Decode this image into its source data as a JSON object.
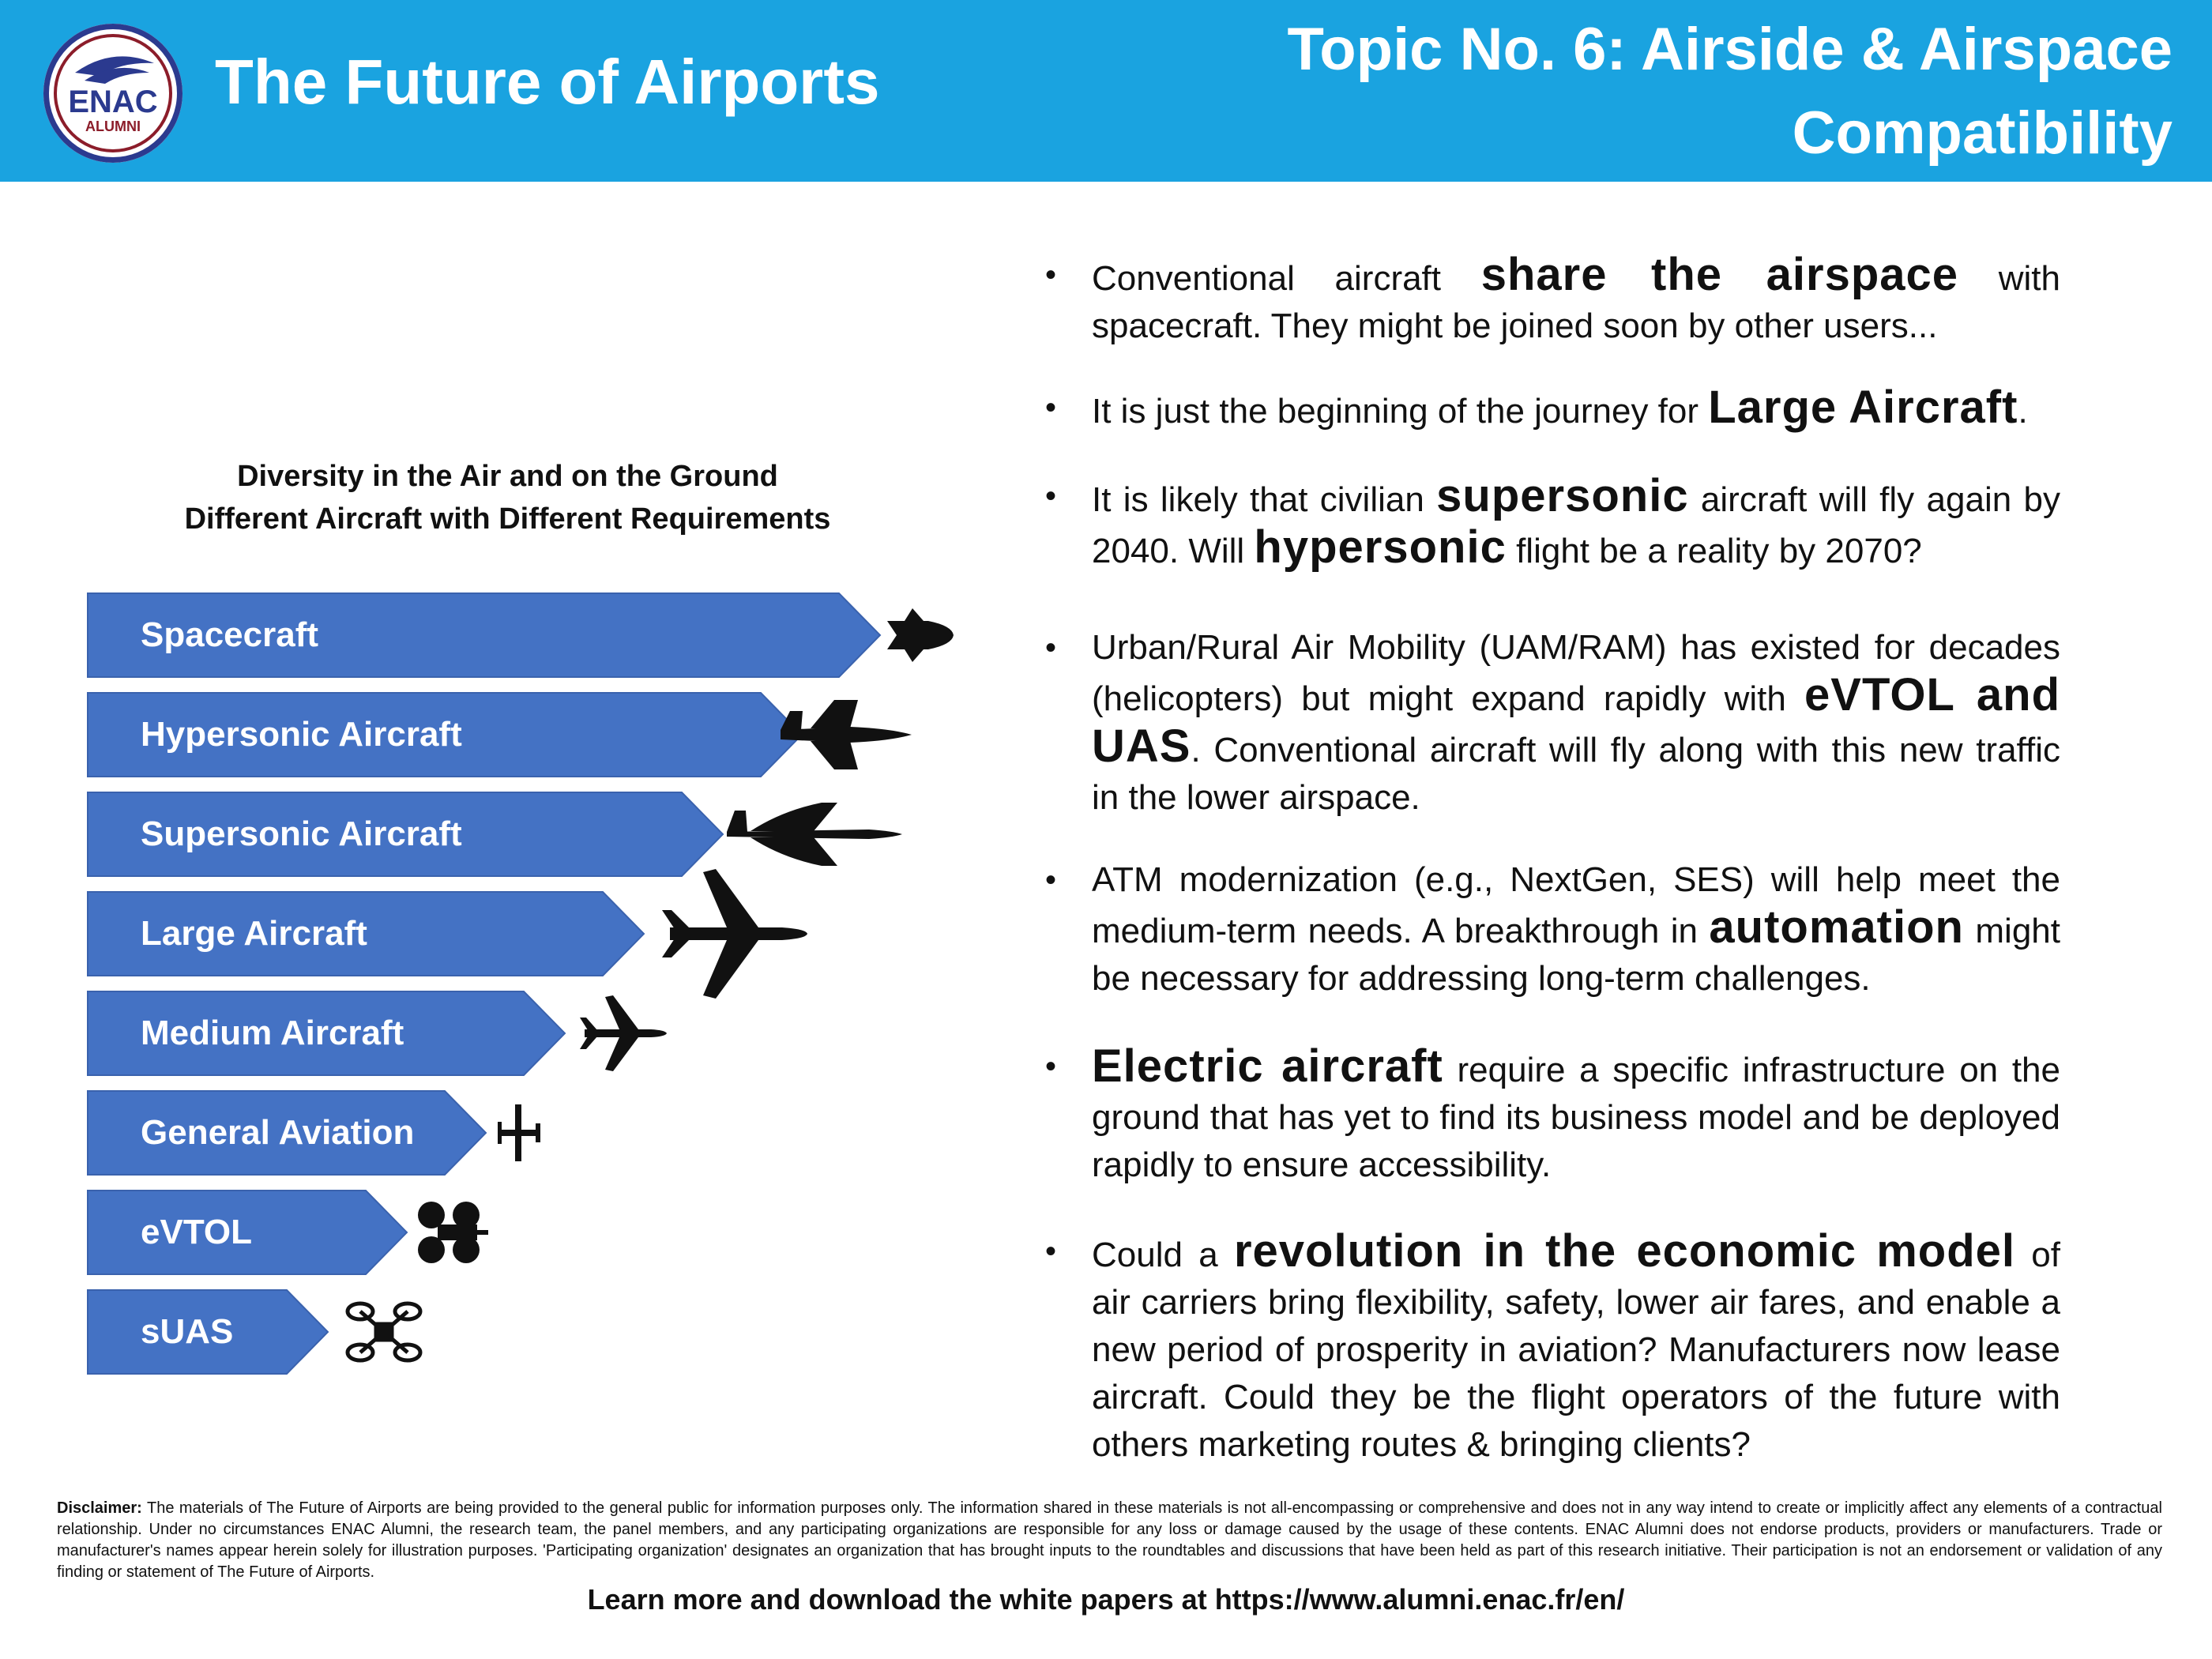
{
  "header": {
    "logo_text": "ENAC",
    "logo_subtext": "ALUMNI",
    "site_title": "The Future of Airports",
    "topic_title": "Topic No. 6: Airside & Airspace Compatibility",
    "background_color": "#1aa3e0"
  },
  "diagram": {
    "heading_line1": "Diversity in the Air and on the Ground",
    "heading_line2": "Different Aircraft with Different Requirements",
    "arrow_color": "#4472c4",
    "items": [
      {
        "label": "Spacecraft",
        "icon": "spacecraft-icon"
      },
      {
        "label": "Hypersonic Aircraft",
        "icon": "hypersonic-aircraft-icon"
      },
      {
        "label": "Supersonic Aircraft",
        "icon": "supersonic-aircraft-icon"
      },
      {
        "label": "Large Aircraft",
        "icon": "large-aircraft-icon"
      },
      {
        "label": "Medium Aircraft",
        "icon": "medium-aircraft-icon"
      },
      {
        "label": "General Aviation",
        "icon": "general-aviation-icon"
      },
      {
        "label": "eVTOL",
        "icon": "evtol-icon"
      },
      {
        "label": "sUAS",
        "icon": "suas-drone-icon"
      }
    ]
  },
  "bullets": [
    {
      "parts": [
        {
          "t": "Conventional aircraft "
        },
        {
          "t": "share the airspace",
          "em": true
        },
        {
          "t": " with spacecraft. They might be joined soon by other users..."
        }
      ]
    },
    {
      "parts": [
        {
          "t": "It is just the beginning of the journey for "
        },
        {
          "t": "Large Aircraft",
          "em": true
        },
        {
          "t": "."
        }
      ]
    },
    {
      "parts": [
        {
          "t": "It is likely that civilian "
        },
        {
          "t": "supersonic",
          "em": true
        },
        {
          "t": " aircraft will fly again by 2040. Will "
        },
        {
          "t": "hypersonic",
          "em": true
        },
        {
          "t": " flight be a reality by 2070?"
        }
      ]
    },
    {
      "parts": [
        {
          "t": "Urban/Rural Air Mobility (UAM/RAM) has existed for decades (helicopters) but might expand rapidly with "
        },
        {
          "t": "eVTOL and UAS",
          "em": true
        },
        {
          "t": ". Conventional aircraft will fly along with this new traffic in the lower airspace."
        }
      ]
    },
    {
      "parts": [
        {
          "t": "ATM modernization (e.g., NextGen, SES) will help meet the medium-term needs. A breakthrough in "
        },
        {
          "t": "automation",
          "em": true
        },
        {
          "t": " might be necessary for addressing long-term challenges."
        }
      ]
    },
    {
      "parts": [
        {
          "t": " "
        },
        {
          "t": "Electric aircraft",
          "em": true
        },
        {
          "t": " require a specific infrastructure on the ground that has yet to find its business model and be deployed rapidly to ensure accessibility."
        }
      ]
    },
    {
      "parts": [
        {
          "t": "Could a "
        },
        {
          "t": "revolution in the economic model",
          "em": true
        },
        {
          "t": " of air carriers bring flexibility, safety, lower air fares, and enable a new period of prosperity in aviation? Manufacturers now lease aircraft. Could they be the flight operators of the future with others marketing routes & bringing clients?"
        }
      ]
    }
  ],
  "footer": {
    "disclaimer_label": "Disclaimer:",
    "disclaimer_text": " The materials of The Future of Airports are being provided to the general public for information purposes only. The information shared in these materials is not all-encompassing or comprehensive and does not in any way intend to create or implicitly affect any elements of a contractual relationship. Under no circumstances ENAC Alumni, the research team, the panel members, and any participating organizations are responsible for any loss or damage caused by the usage of these contents. ENAC Alumni does not endorse products, providers or manufacturers. Trade or manufacturer's names appear herein solely for illustration purposes. 'Participating organization' designates an organization that has brought inputs to the roundtables and discussions that have been held as part of this research initiative. Their participation is not an endorsement or validation of any finding or statement of The Future of Airports.",
    "learn_more": "Learn more and download the white papers at https://www.alumni.enac.fr/en/"
  }
}
